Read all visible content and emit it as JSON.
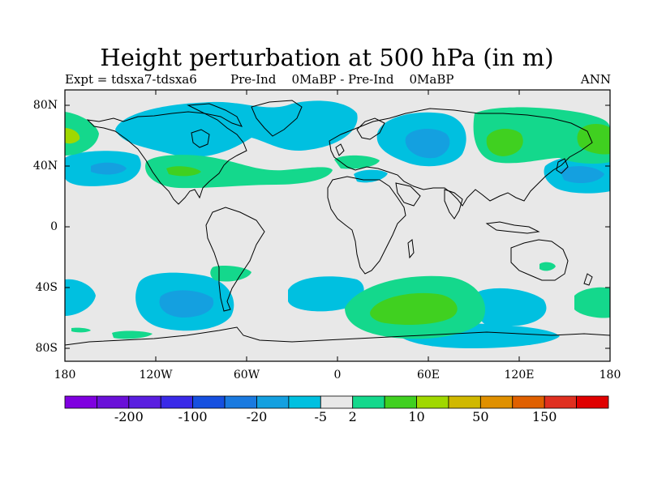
{
  "title": "Height perturbation at 500 hPa (in m)",
  "subtitle_left": "Expt = tdsxa7-tdsxa6",
  "subtitle_center": "Pre-Ind    0MaBP - Pre-Ind    0MaBP",
  "subtitle_right": "ANN",
  "map": {
    "projection": "cylindrical-equidistant",
    "land_fill": "#e8e8e8",
    "coastline_color": "#000000",
    "lat_labels": [
      "80N",
      "40N",
      "0",
      "40S",
      "80S"
    ],
    "lon_labels": [
      "180",
      "120W",
      "60W",
      "0",
      "60E",
      "120E",
      "180"
    ]
  },
  "colorbar": {
    "colors": [
      "#7f00e0",
      "#6a10d8",
      "#5a1ee0",
      "#3a2ae8",
      "#1650e0",
      "#1a7ae0",
      "#14a0e0",
      "#00c0e0",
      "#e8e8e8",
      "#14d88c",
      "#40d020",
      "#a0d800",
      "#d0b800",
      "#e09000",
      "#e06000",
      "#e03020",
      "#e00000"
    ],
    "labels": [
      "-200",
      "-100",
      "-20",
      "-5",
      "2",
      "10",
      "50",
      "150"
    ]
  }
}
